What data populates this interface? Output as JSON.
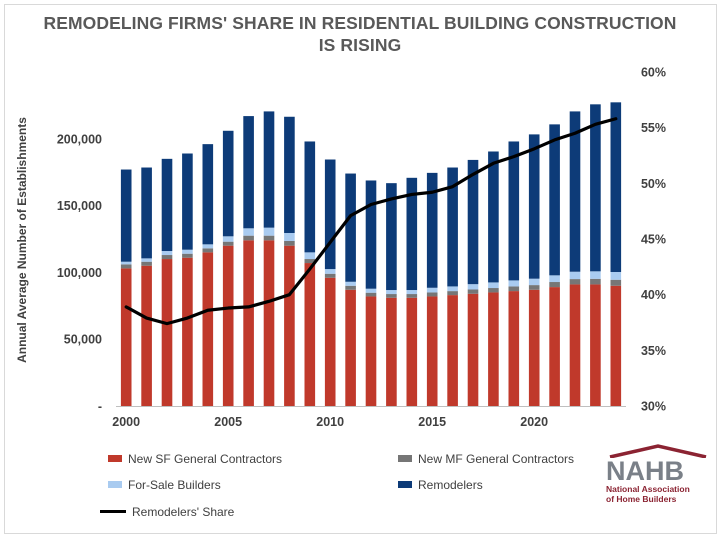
{
  "chart_data": {
    "type": "bar",
    "stacked": true,
    "title": "REMODELING FIRMS' SHARE IN RESIDENTIAL BUILDING CONSTRUCTION IS RISING",
    "title_line1": "REMODELING FIRMS' SHARE IN RESIDENTIAL BUILDING CONSTRUCTION",
    "title_line2": "IS RISING",
    "xlabel": "",
    "ylabel": "Annual Average Number of Establishments",
    "ylim": [
      0,
      250000
    ],
    "y2lim": [
      0.3,
      0.6
    ],
    "y_ticks": [
      "-",
      "50,000",
      "100,000",
      "150,000",
      "200,000"
    ],
    "y_tick_values": [
      0,
      50000,
      100000,
      150000,
      200000
    ],
    "y2_ticks": [
      "30%",
      "35%",
      "40%",
      "45%",
      "50%",
      "55%",
      "60%"
    ],
    "y2_tick_values": [
      0.3,
      0.35,
      0.4,
      0.45,
      0.5,
      0.55,
      0.6
    ],
    "x_tick_labels": [
      "2000",
      "2005",
      "2010",
      "2015",
      "2020"
    ],
    "x_tick_years": [
      2000,
      2005,
      2010,
      2015,
      2020
    ],
    "categories": [
      2000,
      2001,
      2002,
      2003,
      2004,
      2005,
      2006,
      2007,
      2008,
      2009,
      2010,
      2011,
      2012,
      2013,
      2014,
      2015,
      2016,
      2017,
      2018,
      2019,
      2020,
      2021,
      2022,
      2023,
      2024
    ],
    "series": [
      {
        "name": "New SF General Contractors",
        "color": "#c0392b",
        "values": [
          103000,
          105000,
          110000,
          111000,
          115000,
          120000,
          124000,
          124000,
          120000,
          107000,
          96000,
          87000,
          82000,
          81000,
          81000,
          82000,
          83000,
          84000,
          85000,
          86000,
          87000,
          89000,
          91000,
          91000,
          90000
        ]
      },
      {
        "name": "New MF General Contractors",
        "color": "#767676",
        "values": [
          3000,
          3000,
          3000,
          3000,
          3000,
          3000,
          3500,
          3500,
          3500,
          3000,
          3000,
          3000,
          2800,
          2800,
          2800,
          3000,
          3000,
          3200,
          3300,
          3500,
          3500,
          3800,
          4000,
          4200,
          4500
        ]
      },
      {
        "name": "For-Sale Builders",
        "color": "#a9cbf0",
        "values": [
          2000,
          2500,
          3000,
          3000,
          3000,
          4000,
          5500,
          6000,
          6000,
          5000,
          3500,
          3000,
          3000,
          3000,
          3000,
          3500,
          3500,
          4000,
          4200,
          4500,
          4800,
          5000,
          5500,
          5600,
          5800
        ]
      },
      {
        "name": "Remodelers",
        "color": "#0d3b78",
        "values": [
          69000,
          68000,
          69000,
          72000,
          75000,
          79000,
          84000,
          87000,
          87000,
          83000,
          82000,
          81000,
          81000,
          80000,
          84000,
          86000,
          89000,
          93000,
          98000,
          104000,
          108000,
          113000,
          120000,
          125000,
          127000
        ]
      }
    ],
    "line": {
      "name": "Remodelers' Share",
      "color": "#000000",
      "axis": "right",
      "values": [
        0.389,
        0.379,
        0.374,
        0.379,
        0.386,
        0.388,
        0.389,
        0.394,
        0.4,
        0.423,
        0.447,
        0.471,
        0.481,
        0.486,
        0.49,
        0.492,
        0.497,
        0.508,
        0.518,
        0.524,
        0.531,
        0.539,
        0.545,
        0.553,
        0.558
      ]
    }
  },
  "legend": {
    "sf": "New SF General Contractors",
    "mf": "New MF General Contractors",
    "forsale": "For-Sale Builders",
    "remodelers": "Remodelers",
    "share": "Remodelers' Share"
  },
  "logo": {
    "word": "NAHB",
    "line1": "National Association",
    "line2": "of Home Builders",
    "color": "#8b2332"
  }
}
